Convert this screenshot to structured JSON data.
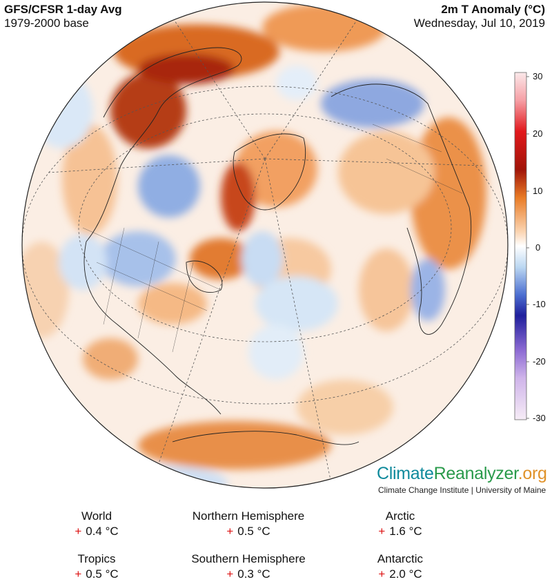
{
  "header": {
    "title_left": "GFS/CFSR 1-day Avg",
    "subtitle_left": "1979-2000 base",
    "title_right": "2m T Anomaly (°C)",
    "date": "Wednesday, Jul 10, 2019"
  },
  "colorbar": {
    "ticks": [
      "30",
      "20",
      "10",
      "0",
      "-10",
      "-20",
      "-30"
    ]
  },
  "branding": {
    "part1": "Climate",
    "part2": "Reanalyzer",
    "part3": ".org",
    "subtitle": "Climate Change Institute | University of Maine"
  },
  "stats": [
    {
      "label": "World",
      "sign": "+",
      "value": "0.4 °C"
    },
    {
      "label": "Northern Hemisphere",
      "sign": "+",
      "value": "0.5 °C"
    },
    {
      "label": "Arctic",
      "sign": "+",
      "value": "1.6 °C"
    },
    {
      "label": "Tropics",
      "sign": "+",
      "value": "0.5 °C"
    },
    {
      "label": "Southern Hemisphere",
      "sign": "+",
      "value": "0.3 °C"
    },
    {
      "label": "Antarctic",
      "sign": "+",
      "value": "2.0 °C"
    }
  ],
  "colors": {
    "warm_strong": "#9b1a06",
    "warm": "#e07a2c",
    "warm_light": "#f7c79a",
    "neutral": "#fdf6ef",
    "cool_light": "#cfe3f5",
    "cool": "#6f8fd6"
  }
}
